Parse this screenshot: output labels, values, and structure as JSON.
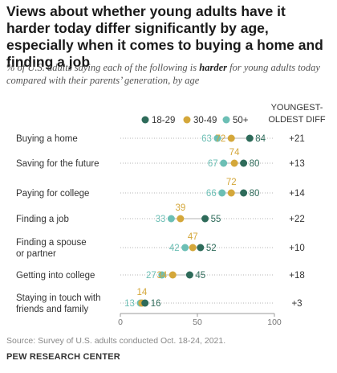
{
  "title": "Views about whether young adults have it harder today differ significantly by age, especially when it comes to buying a home and finding a job",
  "subtitle_before": "% of U.S. adults saying each of the following is ",
  "subtitle_emph": "harder",
  "subtitle_after": " for young adults today compared with their parents’ generation, by age",
  "source": "Source: Survey of U.S. adults conducted Oct. 18-24, 2021.",
  "organization": "PEW RESEARCH CENTER",
  "diff_header": [
    "YOUNGEST-",
    "OLDEST DIFF"
  ],
  "colors": {
    "18-29": "#2e6b5a",
    "30-49": "#d4a73a",
    "50+": "#6cbfb5"
  },
  "chart_data": {
    "type": "dot",
    "xlim": [
      0,
      100
    ],
    "xticks": [
      0,
      50,
      100
    ],
    "series": [
      {
        "name": "18-29",
        "color": "#2e6b5a"
      },
      {
        "name": "30-49",
        "color": "#d4a73a"
      },
      {
        "name": "50+",
        "color": "#6cbfb5"
      }
    ],
    "rows": [
      {
        "label": [
          "Buying a home"
        ],
        "v1829": 84,
        "v3049": 72,
        "v50": 63,
        "diff": "+21"
      },
      {
        "label": [
          "Saving for the future"
        ],
        "v1829": 80,
        "v3049": 74,
        "v50": 67,
        "diff": "+13"
      },
      {
        "label": [
          "Paying for college"
        ],
        "v1829": 80,
        "v3049": 72,
        "v50": 66,
        "diff": "+14"
      },
      {
        "label": [
          "Finding a job"
        ],
        "v1829": 55,
        "v3049": 39,
        "v50": 33,
        "diff": "+22"
      },
      {
        "label": [
          "Finding a spouse",
          "or partner"
        ],
        "v1829": 52,
        "v3049": 47,
        "v50": 42,
        "diff": "+10"
      },
      {
        "label": [
          "Getting into college"
        ],
        "v1829": 45,
        "v3049": 34,
        "v50": 27,
        "diff": "+18"
      },
      {
        "label": [
          "Staying in touch with",
          "friends and family"
        ],
        "v1829": 16,
        "v3049": 14,
        "v50": 13,
        "diff": "+3"
      }
    ]
  }
}
